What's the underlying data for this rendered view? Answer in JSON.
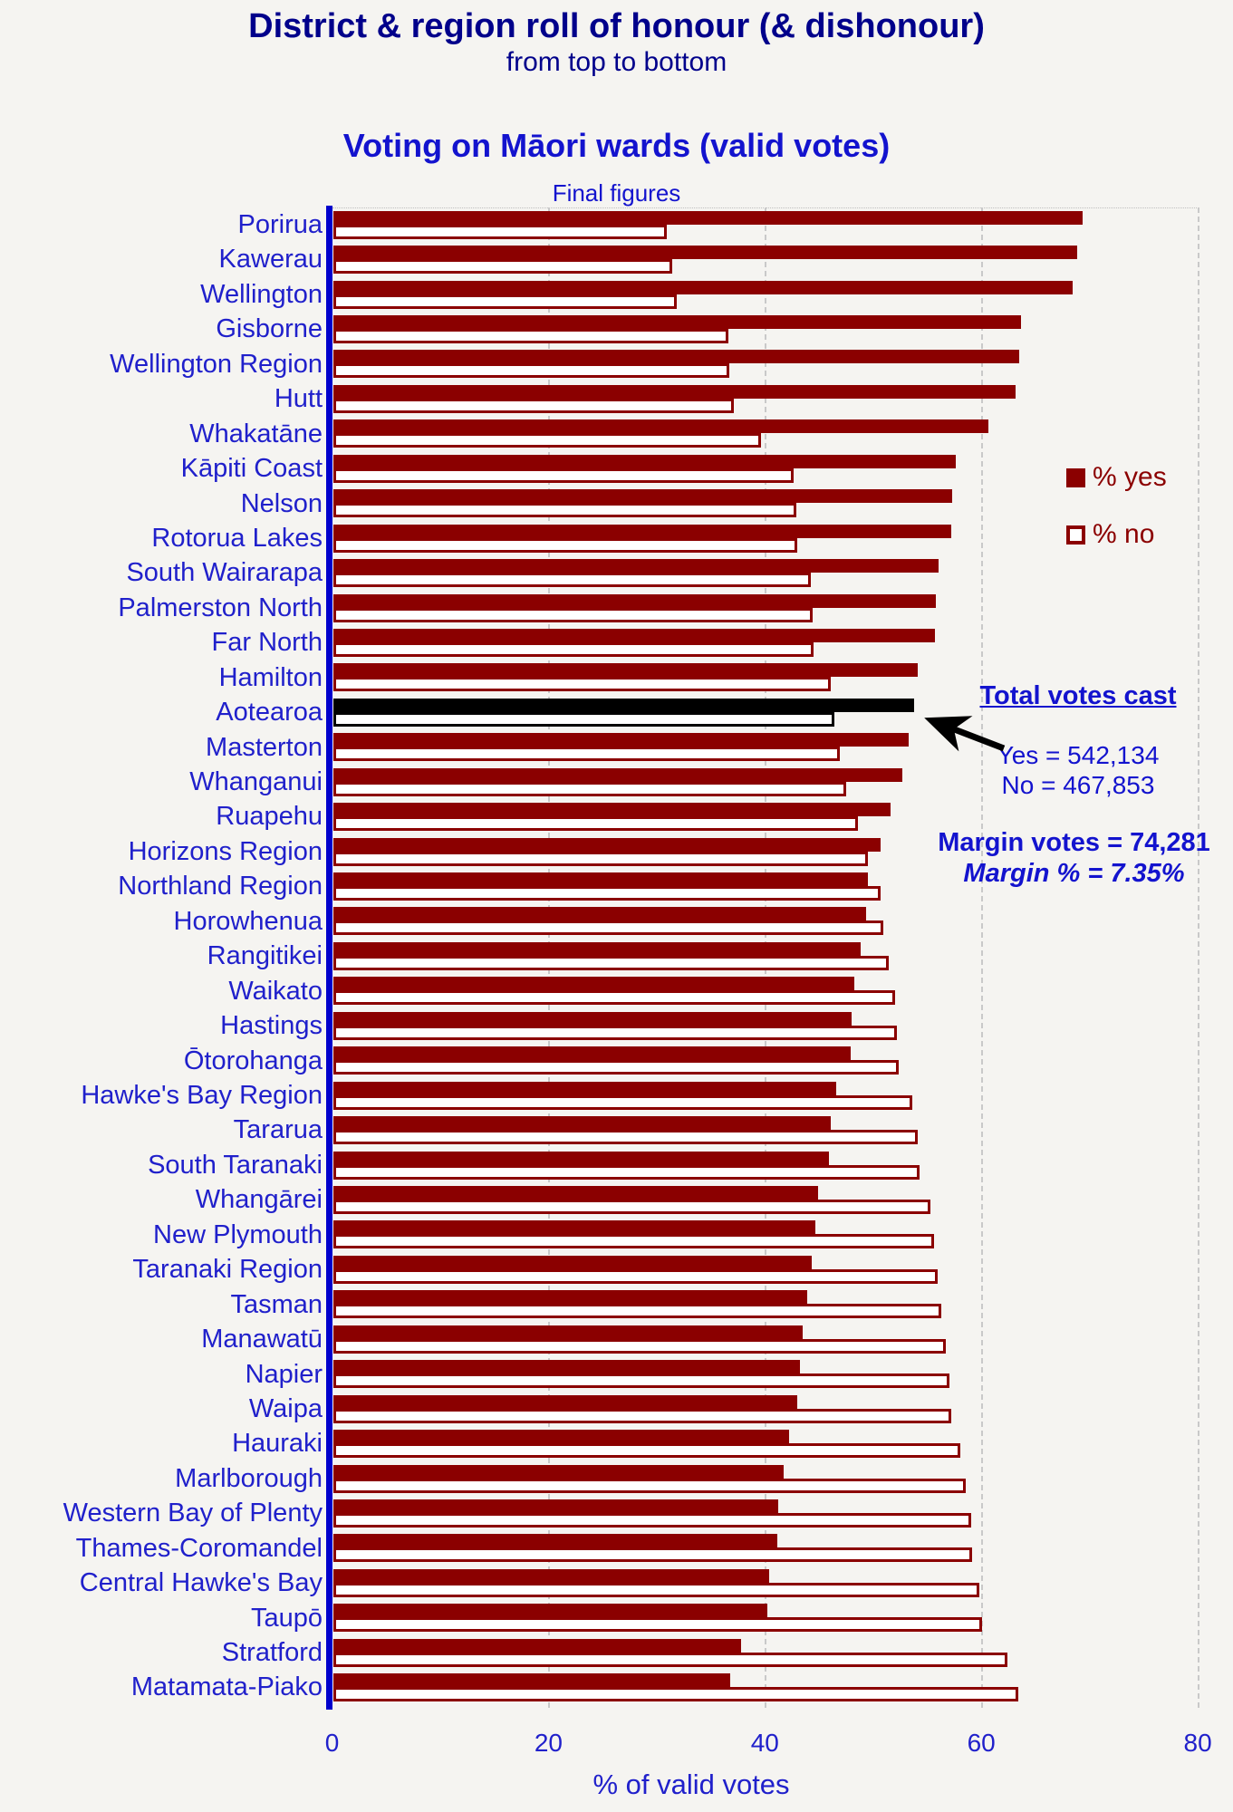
{
  "header": {
    "title": "District & region roll of honour (& dishonour)",
    "subtitle": "from top to bottom",
    "chart_title": "Voting on Māori wards (valid votes)",
    "chart_subtitle": "Final figures"
  },
  "legend": {
    "position": "right",
    "yes_label": "% yes",
    "no_label": "% no"
  },
  "annotations": {
    "total_votes_heading": "Total votes cast",
    "yes_line": "Yes = 542,134",
    "no_line": "No = 467,853",
    "margin_votes_line": "Margin votes = 74,281",
    "margin_pct_line": "Margin % = 7.35%"
  },
  "axis": {
    "xlabel": "% of valid votes",
    "ticks": [
      "0",
      "20",
      "40",
      "60",
      "80"
    ],
    "xlim": [
      0,
      80
    ],
    "grid": "vertical-dashed"
  },
  "colors": {
    "background": "#F5F4F1",
    "yes_bar": "#8B0000",
    "no_bar_fill": "#FFFFFF",
    "no_bar_border": "#8B0000",
    "highlight_bar": "#000000",
    "axis_line": "#0000CC",
    "gridline": "#C9C9C9",
    "district_label": "#2020CB",
    "title": "#00008B",
    "chart_title": "#1313CE",
    "legend_text": "#8B0000",
    "annotation_text": "#1313CE",
    "arrow": "#000000"
  },
  "chart_data": {
    "type": "bar",
    "orientation": "horizontal",
    "title": "Voting on Māori wards (valid votes)",
    "xlabel": "% of valid votes",
    "xlim": [
      0,
      80
    ],
    "highlight_category": "Aotearoa",
    "categories": [
      "Porirua",
      "Kawerau",
      "Wellington",
      "Gisborne",
      "Wellington Region",
      "Hutt",
      "Whakatāne",
      "Kāpiti Coast",
      "Nelson",
      "Rotorua Lakes",
      "South Wairarapa",
      "Palmerston North",
      "Far North",
      "Hamilton",
      "Aotearoa",
      "Masterton",
      "Whanganui",
      "Ruapehu",
      "Horizons Region",
      "Northland Region",
      "Horowhenua",
      "Rangitikei",
      "Waikato",
      "Hastings",
      "Ōtorohanga",
      "Hawke's Bay Region",
      "Tararua",
      "South Taranaki",
      "Whangārei",
      "New Plymouth",
      "Taranaki Region",
      "Tasman",
      "Manawatū",
      "Napier",
      "Waipa",
      "Hauraki",
      "Marlborough",
      "Western Bay of Plenty",
      "Thames-Coromandel",
      "Central Hawke's Bay",
      "Taupō",
      "Stratford",
      "Matamata-Piako"
    ],
    "series": [
      {
        "name": "% yes",
        "values": [
          69.2,
          68.7,
          68.3,
          63.5,
          63.4,
          63.0,
          60.5,
          57.5,
          57.2,
          57.1,
          55.9,
          55.7,
          55.6,
          54.0,
          53.7,
          53.2,
          52.6,
          51.5,
          50.6,
          49.4,
          49.2,
          48.7,
          48.1,
          47.9,
          47.8,
          46.5,
          46.0,
          45.8,
          44.8,
          44.5,
          44.2,
          43.8,
          43.4,
          43.1,
          42.9,
          42.1,
          41.6,
          41.1,
          41.0,
          40.3,
          40.1,
          37.7,
          36.7
        ]
      },
      {
        "name": "% no",
        "values": [
          30.8,
          31.3,
          31.7,
          36.5,
          36.6,
          37.0,
          39.5,
          42.5,
          42.8,
          42.9,
          44.1,
          44.3,
          44.4,
          46.0,
          46.3,
          46.8,
          47.4,
          48.5,
          49.4,
          50.6,
          50.8,
          51.3,
          51.9,
          52.1,
          52.2,
          53.5,
          54.0,
          54.2,
          55.2,
          55.5,
          55.8,
          56.2,
          56.6,
          56.9,
          57.1,
          57.9,
          58.4,
          58.9,
          59.0,
          59.7,
          59.9,
          62.3,
          63.3
        ]
      }
    ],
    "totals": {
      "yes_votes": "542,134",
      "no_votes": "467,853",
      "margin_votes": "74,281",
      "margin_pct": "7.35%"
    }
  }
}
